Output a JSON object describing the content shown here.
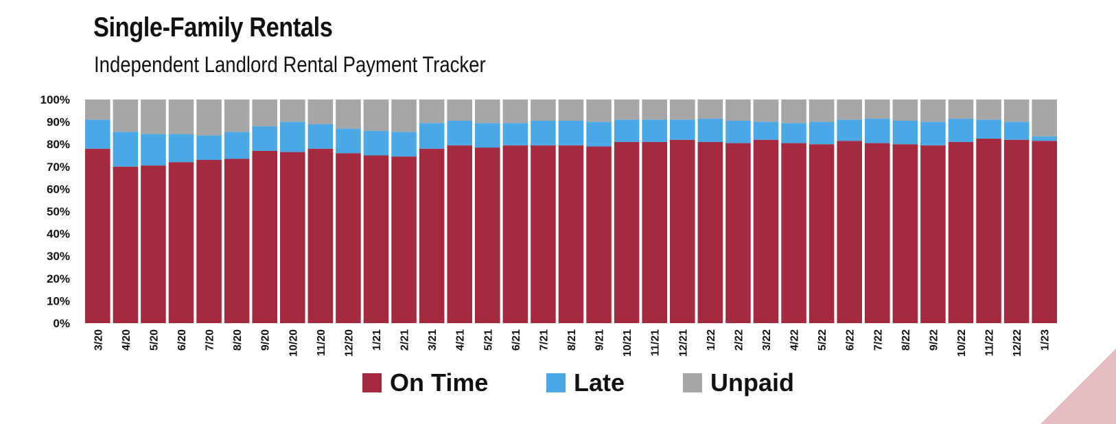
{
  "title": "Single-Family Rentals",
  "subtitle": "Independent Landlord Rental Payment Tracker",
  "colors": {
    "on_time": "#a52a40",
    "late": "#4aa8e6",
    "unpaid": "#a6a6a6",
    "accent_corner": "#e7bcc2"
  },
  "chart_data": {
    "type": "bar",
    "stacked": true,
    "title": "Single-Family Rentals",
    "subtitle": "Independent Landlord Rental Payment Tracker",
    "xlabel": "",
    "ylabel": "",
    "ylim": [
      0,
      100
    ],
    "y_ticks": [
      "0%",
      "10%",
      "20%",
      "30%",
      "40%",
      "50%",
      "60%",
      "70%",
      "80%",
      "90%",
      "100%"
    ],
    "categories": [
      "3/20",
      "4/20",
      "5/20",
      "6/20",
      "7/20",
      "8/20",
      "9/20",
      "10/20",
      "11/20",
      "12/20",
      "1/21",
      "2/21",
      "3/21",
      "4/21",
      "5/21",
      "6/21",
      "7/21",
      "8/21",
      "9/21",
      "10/21",
      "11/21",
      "12/21",
      "1/22",
      "2/22",
      "3/22",
      "4/22",
      "5/22",
      "6/22",
      "7/22",
      "8/22",
      "9/22",
      "10/22",
      "11/22",
      "12/22",
      "1/23"
    ],
    "series": [
      {
        "name": "On Time",
        "values": [
          78,
          70,
          70.5,
          72,
          73,
          73.5,
          77,
          76.5,
          78,
          76,
          75,
          74.5,
          78,
          79.5,
          78.5,
          79.5,
          79.5,
          79.5,
          79,
          81,
          81,
          82,
          81,
          80.5,
          82,
          80.5,
          80,
          81.5,
          80.5,
          80,
          79.5,
          81,
          82.5,
          82,
          81.5
        ]
      },
      {
        "name": "Late",
        "values": [
          13,
          15.5,
          14,
          12.5,
          11,
          12,
          11,
          13.5,
          11,
          11,
          11,
          11,
          11.5,
          11,
          11,
          10,
          11,
          11,
          11,
          10,
          10,
          9,
          10.5,
          10,
          8,
          9,
          10,
          9.5,
          11,
          10.5,
          10.5,
          10.5,
          8.5,
          8,
          2
        ]
      },
      {
        "name": "Unpaid",
        "values": [
          9,
          14.5,
          15.5,
          15.5,
          16,
          14.5,
          12,
          10,
          11,
          13,
          14,
          14.5,
          10.5,
          9.5,
          10.5,
          10.5,
          9.5,
          9.5,
          10,
          9,
          9,
          9,
          8.5,
          9.5,
          10,
          10.5,
          10,
          9,
          8.5,
          9.5,
          10,
          8.5,
          9,
          10,
          16.5
        ]
      }
    ],
    "legend": {
      "position": "bottom",
      "entries": [
        "On Time",
        "Late",
        "Unpaid"
      ]
    }
  }
}
